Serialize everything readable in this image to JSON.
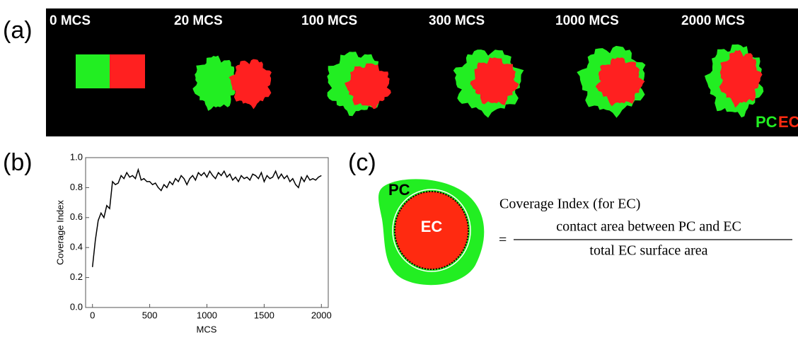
{
  "panel_a": {
    "label": "(a)",
    "frames": [
      "0 MCS",
      "20 MCS",
      "100 MCS",
      "300 MCS",
      "1000 MCS",
      "2000 MCS"
    ],
    "legend": [
      "PC",
      "EC"
    ]
  },
  "panel_b": {
    "label": "(b)"
  },
  "chart_data": {
    "type": "line",
    "xlabel": "MCS",
    "ylabel": "Coverage Index",
    "x": [
      0,
      25,
      50,
      75,
      100,
      125,
      150,
      175,
      200,
      225,
      250,
      275,
      300,
      325,
      350,
      375,
      400,
      425,
      450,
      475,
      500,
      525,
      550,
      575,
      600,
      625,
      650,
      675,
      700,
      725,
      750,
      775,
      800,
      825,
      850,
      875,
      900,
      925,
      950,
      975,
      1000,
      1025,
      1050,
      1075,
      1100,
      1125,
      1150,
      1175,
      1200,
      1225,
      1250,
      1275,
      1300,
      1325,
      1350,
      1375,
      1400,
      1425,
      1450,
      1475,
      1500,
      1525,
      1550,
      1575,
      1600,
      1625,
      1650,
      1675,
      1700,
      1725,
      1750,
      1775,
      1800,
      1825,
      1850,
      1875,
      1900,
      1925,
      1950,
      1975,
      2000
    ],
    "series": [
      {
        "name": "Coverage Index",
        "color": "#000000",
        "values": [
          0.27,
          0.45,
          0.58,
          0.63,
          0.6,
          0.68,
          0.66,
          0.84,
          0.82,
          0.83,
          0.88,
          0.86,
          0.9,
          0.87,
          0.88,
          0.86,
          0.92,
          0.85,
          0.86,
          0.84,
          0.84,
          0.82,
          0.83,
          0.8,
          0.78,
          0.82,
          0.8,
          0.84,
          0.82,
          0.86,
          0.84,
          0.88,
          0.86,
          0.82,
          0.86,
          0.88,
          0.85,
          0.9,
          0.88,
          0.9,
          0.87,
          0.91,
          0.88,
          0.86,
          0.9,
          0.88,
          0.91,
          0.87,
          0.89,
          0.85,
          0.87,
          0.84,
          0.88,
          0.86,
          0.87,
          0.85,
          0.89,
          0.88,
          0.86,
          0.9,
          0.84,
          0.88,
          0.86,
          0.87,
          0.91,
          0.86,
          0.89,
          0.86,
          0.88,
          0.84,
          0.86,
          0.82,
          0.8,
          0.87,
          0.84,
          0.88,
          0.85,
          0.86,
          0.85,
          0.87,
          0.88
        ]
      }
    ],
    "xlim": [
      -60,
      2060
    ],
    "ylim": [
      0,
      1
    ],
    "xticks": [
      0,
      500,
      1000,
      1500,
      2000
    ],
    "yticks": [
      {
        "value": 0,
        "label": "0.0"
      },
      {
        "value": 0.2,
        "label": "0.2"
      },
      {
        "value": 0.4,
        "label": "0.4"
      },
      {
        "value": 0.6,
        "label": "0.6"
      },
      {
        "value": 0.8,
        "label": "0.8"
      },
      {
        "value": 1,
        "label": "1.0"
      }
    ]
  },
  "panel_c": {
    "label": "(c)",
    "pc_label": "PC",
    "ec_label": "EC",
    "formula": {
      "lhs": "Coverage Index (for EC)",
      "equals": "=",
      "numerator": "contact area between PC and EC",
      "denominator": "total EC surface area"
    }
  }
}
